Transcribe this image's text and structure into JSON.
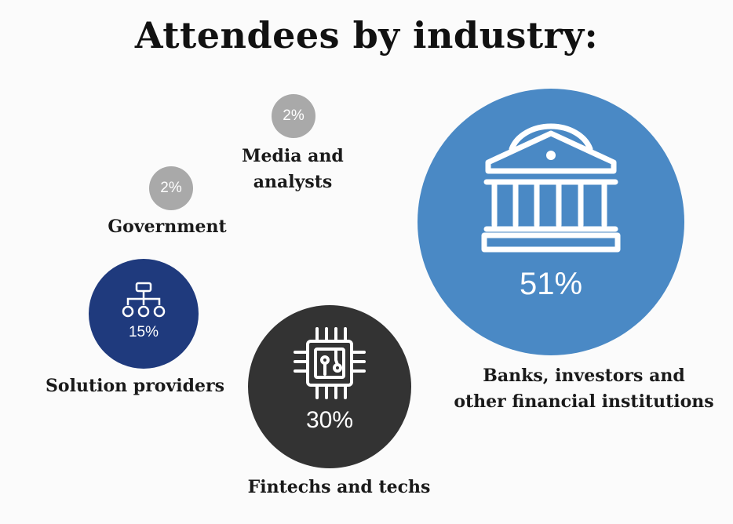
{
  "chart_data": {
    "type": "bubble",
    "title": "Attendees by industry:",
    "unit": "%",
    "categories": [
      "Banks, investors and other financial institutions",
      "Fintechs and techs",
      "Solution providers",
      "Government",
      "Media and analysts"
    ],
    "values": [
      51,
      30,
      15,
      2,
      2
    ],
    "items": [
      {
        "label_line1": "Banks, investors and",
        "label_line2": "other financial institutions",
        "value": 51,
        "value_label": "51%",
        "icon": "bank-icon",
        "color": "#4a89c5"
      },
      {
        "label_line1": "Fintechs and techs",
        "value": 30,
        "value_label": "30%",
        "icon": "chip-icon",
        "color": "#333333"
      },
      {
        "label_line1": "Solution providers",
        "value": 15,
        "value_label": "15%",
        "icon": "hierarchy-icon",
        "color": "#1f3a7d"
      },
      {
        "label_line1": "Government",
        "value": 2,
        "value_label": "2%",
        "color": "#a9a9a9"
      },
      {
        "label_line1": "Media and",
        "label_line2": "analysts",
        "value": 2,
        "value_label": "2%",
        "color": "#a9a9a9"
      }
    ]
  }
}
